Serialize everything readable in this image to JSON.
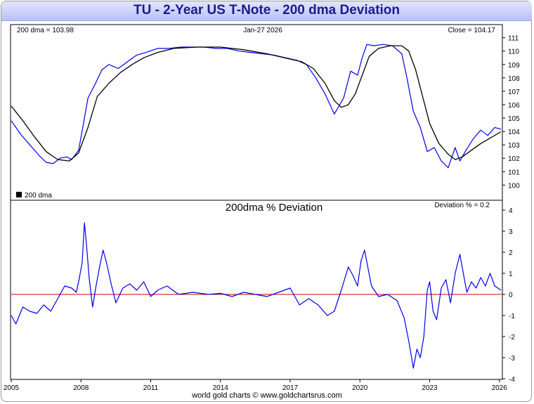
{
  "title": "TU  -  2-Year US T-Note - 200 dma Deviation",
  "footer": "world gold charts © www.goldchartsrus.com",
  "top_panel": {
    "label_left": "200 dma = 103.98",
    "label_center": "Jan-27  2026",
    "label_right": "Close = 104.17",
    "legend": "200 dma"
  },
  "bottom_panel": {
    "title": "200dma  %  Deviation",
    "label_right": "Deviation % = 0.2"
  },
  "colors": {
    "price": "#0000ee",
    "dma": "#000000",
    "zero_line": "#cc0000",
    "frame": "#000000"
  },
  "chart_data": [
    {
      "type": "line",
      "panel": "price",
      "xlim": [
        2005,
        2026.1
      ],
      "ylim": [
        99.6,
        111.4
      ],
      "x_ticks": [
        "2005",
        "2008",
        "2011",
        "2014",
        "2017",
        "2020",
        "2023",
        "2026"
      ],
      "y_ticks": [
        100,
        101,
        102,
        103,
        104,
        105,
        106,
        107,
        108,
        109,
        110,
        111
      ],
      "series": [
        {
          "name": "Close",
          "x": [
            2005.0,
            2005.4,
            2005.8,
            2006.2,
            2006.5,
            2006.8,
            2007.1,
            2007.4,
            2007.6,
            2007.9,
            2008.1,
            2008.3,
            2008.6,
            2008.9,
            2009.2,
            2009.6,
            2010.0,
            2010.4,
            2010.8,
            2011.3,
            2011.8,
            2012.3,
            2012.8,
            2013.3,
            2013.8,
            2014.3,
            2014.8,
            2015.3,
            2015.8,
            2016.3,
            2016.8,
            2017.3,
            2017.7,
            2018.1,
            2018.5,
            2018.9,
            2019.3,
            2019.6,
            2019.9,
            2020.1,
            2020.3,
            2020.6,
            2021.0,
            2021.4,
            2021.8,
            2022.0,
            2022.3,
            2022.6,
            2022.9,
            2023.2,
            2023.5,
            2023.8,
            2024.1,
            2024.3,
            2024.6,
            2024.9,
            2025.2,
            2025.5,
            2025.8,
            2026.07
          ],
          "y": [
            104.8,
            103.8,
            103.0,
            102.2,
            101.7,
            101.6,
            102.0,
            102.1,
            101.9,
            102.6,
            104.5,
            106.5,
            107.5,
            108.6,
            109.0,
            108.7,
            109.2,
            109.7,
            109.9,
            110.2,
            110.2,
            110.3,
            110.3,
            110.3,
            110.2,
            110.2,
            110.0,
            109.9,
            109.8,
            109.7,
            109.5,
            109.3,
            109.0,
            108.0,
            106.8,
            105.3,
            106.5,
            108.5,
            108.2,
            109.5,
            110.5,
            110.4,
            110.5,
            110.4,
            109.8,
            108.2,
            105.5,
            104.3,
            102.5,
            102.8,
            101.8,
            101.3,
            102.8,
            101.8,
            102.7,
            103.5,
            104.1,
            103.7,
            104.3,
            104.17
          ]
        },
        {
          "name": "200 dma",
          "x": [
            2005.0,
            2005.5,
            2006.0,
            2006.5,
            2007.0,
            2007.5,
            2007.9,
            2008.3,
            2008.7,
            2009.2,
            2009.7,
            2010.2,
            2010.7,
            2011.3,
            2012.0,
            2013.0,
            2014.0,
            2015.0,
            2016.0,
            2017.0,
            2017.5,
            2018.0,
            2018.5,
            2018.9,
            2019.2,
            2019.5,
            2019.8,
            2020.1,
            2020.4,
            2020.8,
            2021.3,
            2021.8,
            2022.1,
            2022.4,
            2022.7,
            2023.0,
            2023.4,
            2023.8,
            2024.1,
            2024.4,
            2024.8,
            2025.2,
            2025.6,
            2026.07
          ],
          "y": [
            105.9,
            104.8,
            103.6,
            102.5,
            101.9,
            101.8,
            102.4,
            104.3,
            106.6,
            107.6,
            108.4,
            109.0,
            109.5,
            109.9,
            110.2,
            110.3,
            110.3,
            110.1,
            109.8,
            109.4,
            109.2,
            108.7,
            107.6,
            106.3,
            105.8,
            106.0,
            106.8,
            108.2,
            109.6,
            110.2,
            110.4,
            110.4,
            110.0,
            108.6,
            106.6,
            104.6,
            103.1,
            102.3,
            101.9,
            102.1,
            102.6,
            103.1,
            103.5,
            103.98
          ]
        }
      ]
    },
    {
      "type": "line",
      "panel": "deviation",
      "title": "200dma  %  Deviation",
      "xlim": [
        2005,
        2026.1
      ],
      "ylim": [
        -4,
        4
      ],
      "x_ticks": [
        "2005",
        "2008",
        "2011",
        "2014",
        "2017",
        "2020",
        "2023",
        "2026"
      ],
      "y_ticks": [
        4,
        3,
        2,
        1,
        0,
        -1,
        -2,
        -3,
        -4
      ],
      "reference_line": 0,
      "series": [
        {
          "name": "Deviation %",
          "x": [
            2005.0,
            2005.2,
            2005.5,
            2005.8,
            2006.1,
            2006.4,
            2006.7,
            2007.0,
            2007.3,
            2007.6,
            2007.8,
            2007.9,
            2008.05,
            2008.15,
            2008.25,
            2008.35,
            2008.5,
            2008.65,
            2008.8,
            2008.95,
            2009.1,
            2009.3,
            2009.5,
            2009.8,
            2010.1,
            2010.4,
            2010.7,
            2011.0,
            2011.3,
            2011.7,
            2012.2,
            2012.8,
            2013.5,
            2014.0,
            2014.5,
            2015.0,
            2015.5,
            2016.0,
            2016.5,
            2017.0,
            2017.4,
            2017.8,
            2018.2,
            2018.6,
            2018.9,
            2019.2,
            2019.5,
            2019.7,
            2019.9,
            2020.05,
            2020.2,
            2020.5,
            2020.8,
            2021.2,
            2021.6,
            2021.9,
            2022.1,
            2022.3,
            2022.45,
            2022.6,
            2022.75,
            2022.9,
            2023.0,
            2023.15,
            2023.3,
            2023.5,
            2023.7,
            2023.9,
            2024.1,
            2024.3,
            2024.45,
            2024.6,
            2024.8,
            2025.0,
            2025.2,
            2025.4,
            2025.6,
            2025.8,
            2026.07
          ],
          "y": [
            -1.0,
            -1.4,
            -0.6,
            -0.8,
            -0.9,
            -0.5,
            -0.8,
            -0.2,
            0.4,
            0.3,
            0.1,
            0.6,
            1.5,
            3.4,
            2.2,
            0.8,
            -0.6,
            0.4,
            1.3,
            2.1,
            1.5,
            0.5,
            -0.4,
            0.3,
            0.5,
            0.2,
            0.6,
            -0.1,
            0.2,
            0.4,
            0.0,
            0.1,
            0.0,
            0.05,
            -0.1,
            0.1,
            0.0,
            -0.1,
            0.1,
            0.3,
            -0.5,
            -0.2,
            -0.5,
            -1.0,
            -0.8,
            0.2,
            1.3,
            0.9,
            0.4,
            1.6,
            2.1,
            0.4,
            -0.1,
            0.0,
            -0.3,
            -1.1,
            -2.2,
            -3.5,
            -2.6,
            -3.0,
            -2.0,
            0.2,
            0.6,
            -0.8,
            -1.2,
            0.3,
            0.7,
            -0.4,
            1.0,
            1.9,
            1.0,
            0.1,
            0.6,
            0.3,
            0.8,
            0.4,
            1.0,
            0.4,
            0.2
          ]
        }
      ]
    }
  ]
}
